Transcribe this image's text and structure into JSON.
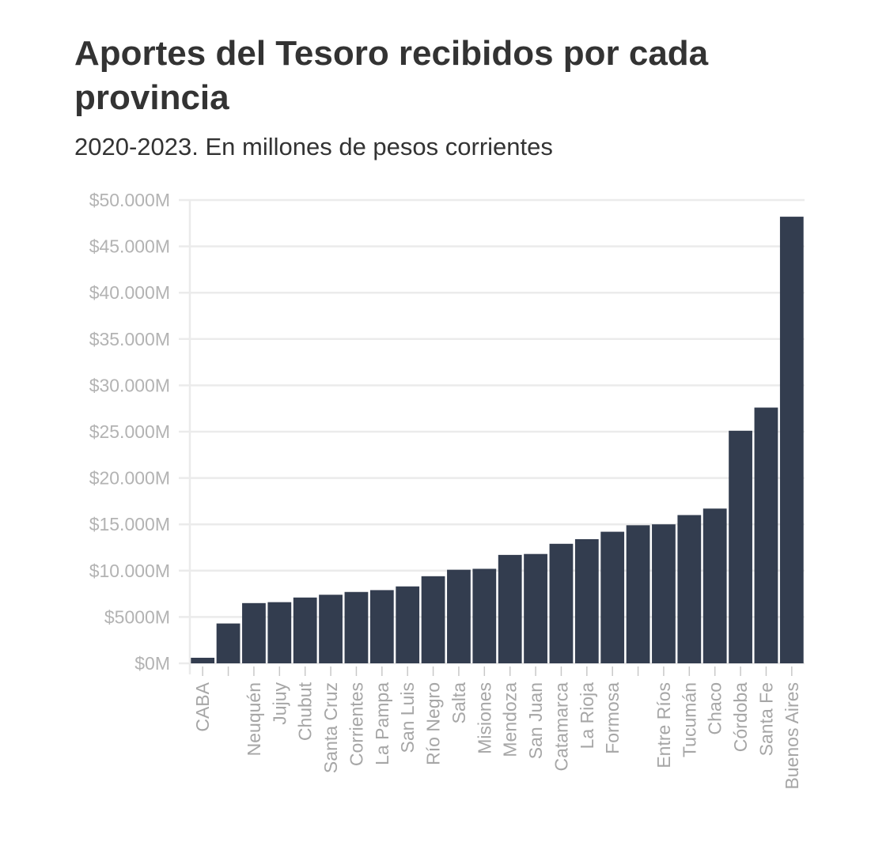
{
  "header": {
    "title": "Aportes del Tesoro recibidos por cada provincia",
    "subtitle": "2020-2023. En millones de pesos corrientes"
  },
  "colors": {
    "bar": "#333d4f",
    "grid": "#ebebeb",
    "tick_text": "#b3b3b3",
    "title_text": "#333333"
  },
  "chart_data": {
    "type": "bar",
    "title": "Aportes del Tesoro recibidos por cada provincia",
    "subtitle": "2020-2023. En millones de pesos corrientes",
    "ylim": [
      0,
      50000
    ],
    "grid": true,
    "y_ticks": [
      0,
      5000,
      10000,
      15000,
      20000,
      25000,
      30000,
      35000,
      40000,
      45000,
      50000
    ],
    "y_tick_labels": [
      "$0M",
      "$5000M",
      "$10.000M",
      "$15.000M",
      "$20.000M",
      "$25.000M",
      "$30.000M",
      "$35.000M",
      "$40.000M",
      "$45.000M",
      "$50.000M"
    ],
    "categories": [
      "CABA",
      "",
      "Neuquén",
      "Jujuy",
      "Chubut",
      "Santa Cruz",
      "Corrientes",
      "La Pampa",
      "San Luis",
      "Río Negro",
      "Salta",
      "Misiones",
      "Mendoza",
      "San Juan",
      "Catamarca",
      "La Rioja",
      "Formosa",
      "",
      "Entre Ríos",
      "Tucumán",
      "Chaco",
      "Córdoba",
      "Santa Fe",
      "Buenos Aires"
    ],
    "values": [
      600,
      4300,
      6500,
      6600,
      7100,
      7400,
      7700,
      7900,
      8300,
      9400,
      10100,
      10200,
      11700,
      11800,
      12900,
      13400,
      14200,
      14900,
      15000,
      16000,
      16700,
      25100,
      27600,
      48200
    ]
  }
}
